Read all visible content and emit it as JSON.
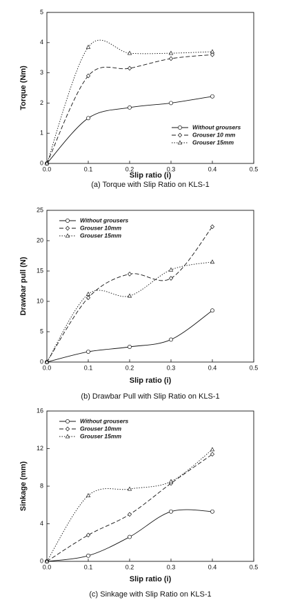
{
  "chart_data": [
    {
      "type": "line",
      "title": "(a) Torque with Slip Ratio on KLS-1",
      "x_label": "Slip ratio (i)",
      "y_label": "Torque (Nm)",
      "x": [
        0,
        0.1,
        0.2,
        0.3,
        0.4
      ],
      "series": [
        {
          "name": "Without grousers",
          "color": "#111111",
          "dash": "solid",
          "marker": "circle",
          "values": [
            0,
            1.5,
            1.85,
            2.0,
            2.22
          ]
        },
        {
          "name": "Grouser 10 mm",
          "color": "#111111",
          "dash": "dashed",
          "marker": "diamond",
          "values": [
            0,
            2.9,
            3.15,
            3.47,
            3.6
          ]
        },
        {
          "name": "Grouser 15mm",
          "color": "#111111",
          "dash": "dotted",
          "marker": "triangle",
          "values": [
            0,
            3.85,
            3.65,
            3.65,
            3.7
          ]
        }
      ],
      "xlim": [
        0,
        0.5
      ],
      "xticks": [
        {
          "value": 0,
          "label": "0.0"
        },
        0.1,
        0.2,
        0.3,
        0.4,
        0.5
      ],
      "ylim": [
        0,
        5
      ],
      "yticks": [
        0,
        1,
        2,
        3,
        4,
        5
      ],
      "legend": "lower right"
    },
    {
      "type": "line",
      "title": "(b) Drawbar Pull with Slip Ratio on KLS-1",
      "x_label": "Slip ratio (i)",
      "y_label": "Drawbar pull (N)",
      "x": [
        0,
        0.1,
        0.2,
        0.3,
        0.4
      ],
      "series": [
        {
          "name": "Without grousers",
          "color": "#111111",
          "dash": "solid",
          "marker": "circle",
          "values": [
            0,
            1.7,
            2.5,
            3.7,
            8.5
          ]
        },
        {
          "name": "Grouser 10mm",
          "color": "#111111",
          "dash": "dashed",
          "marker": "diamond",
          "values": [
            0,
            10.6,
            14.5,
            13.8,
            22.3
          ]
        },
        {
          "name": "Grouser 15mm",
          "color": "#111111",
          "dash": "dotted",
          "marker": "triangle",
          "values": [
            0,
            11.2,
            10.9,
            15.2,
            16.5
          ]
        }
      ],
      "xlim": [
        0,
        0.5
      ],
      "xticks": [
        {
          "value": 0,
          "label": "0.0"
        },
        0.1,
        0.2,
        0.3,
        0.4,
        0.5
      ],
      "ylim": [
        0,
        25
      ],
      "yticks": [
        0,
        5,
        10,
        15,
        20,
        25
      ],
      "legend": "upper left"
    },
    {
      "type": "line",
      "title": "(c) Sinkage with Slip Ratio on KLS-1",
      "x_label": "Slip ratio (i)",
      "y_label": "Sinkage (mm)",
      "x": [
        0,
        0.1,
        0.2,
        0.3,
        0.4
      ],
      "series": [
        {
          "name": "Without grousers",
          "color": "#111111",
          "dash": "solid",
          "marker": "circle",
          "values": [
            0,
            0.6,
            2.6,
            5.3,
            5.3
          ]
        },
        {
          "name": "Grouser 10mm",
          "color": "#111111",
          "dash": "dashed",
          "marker": "diamond",
          "values": [
            0,
            2.8,
            5.0,
            8.3,
            11.4
          ]
        },
        {
          "name": "Grouser 15mm",
          "color": "#111111",
          "dash": "dotted",
          "marker": "triangle",
          "values": [
            0,
            7.0,
            7.7,
            8.5,
            11.9
          ]
        }
      ],
      "xlim": [
        0,
        0.5
      ],
      "xticks": [
        {
          "value": 0,
          "label": "0.0"
        },
        0.1,
        0.2,
        0.3,
        0.4,
        0.5
      ],
      "ylim": [
        0,
        16
      ],
      "yticks": [
        0,
        4,
        8,
        12,
        16
      ],
      "legend": "upper left"
    }
  ]
}
